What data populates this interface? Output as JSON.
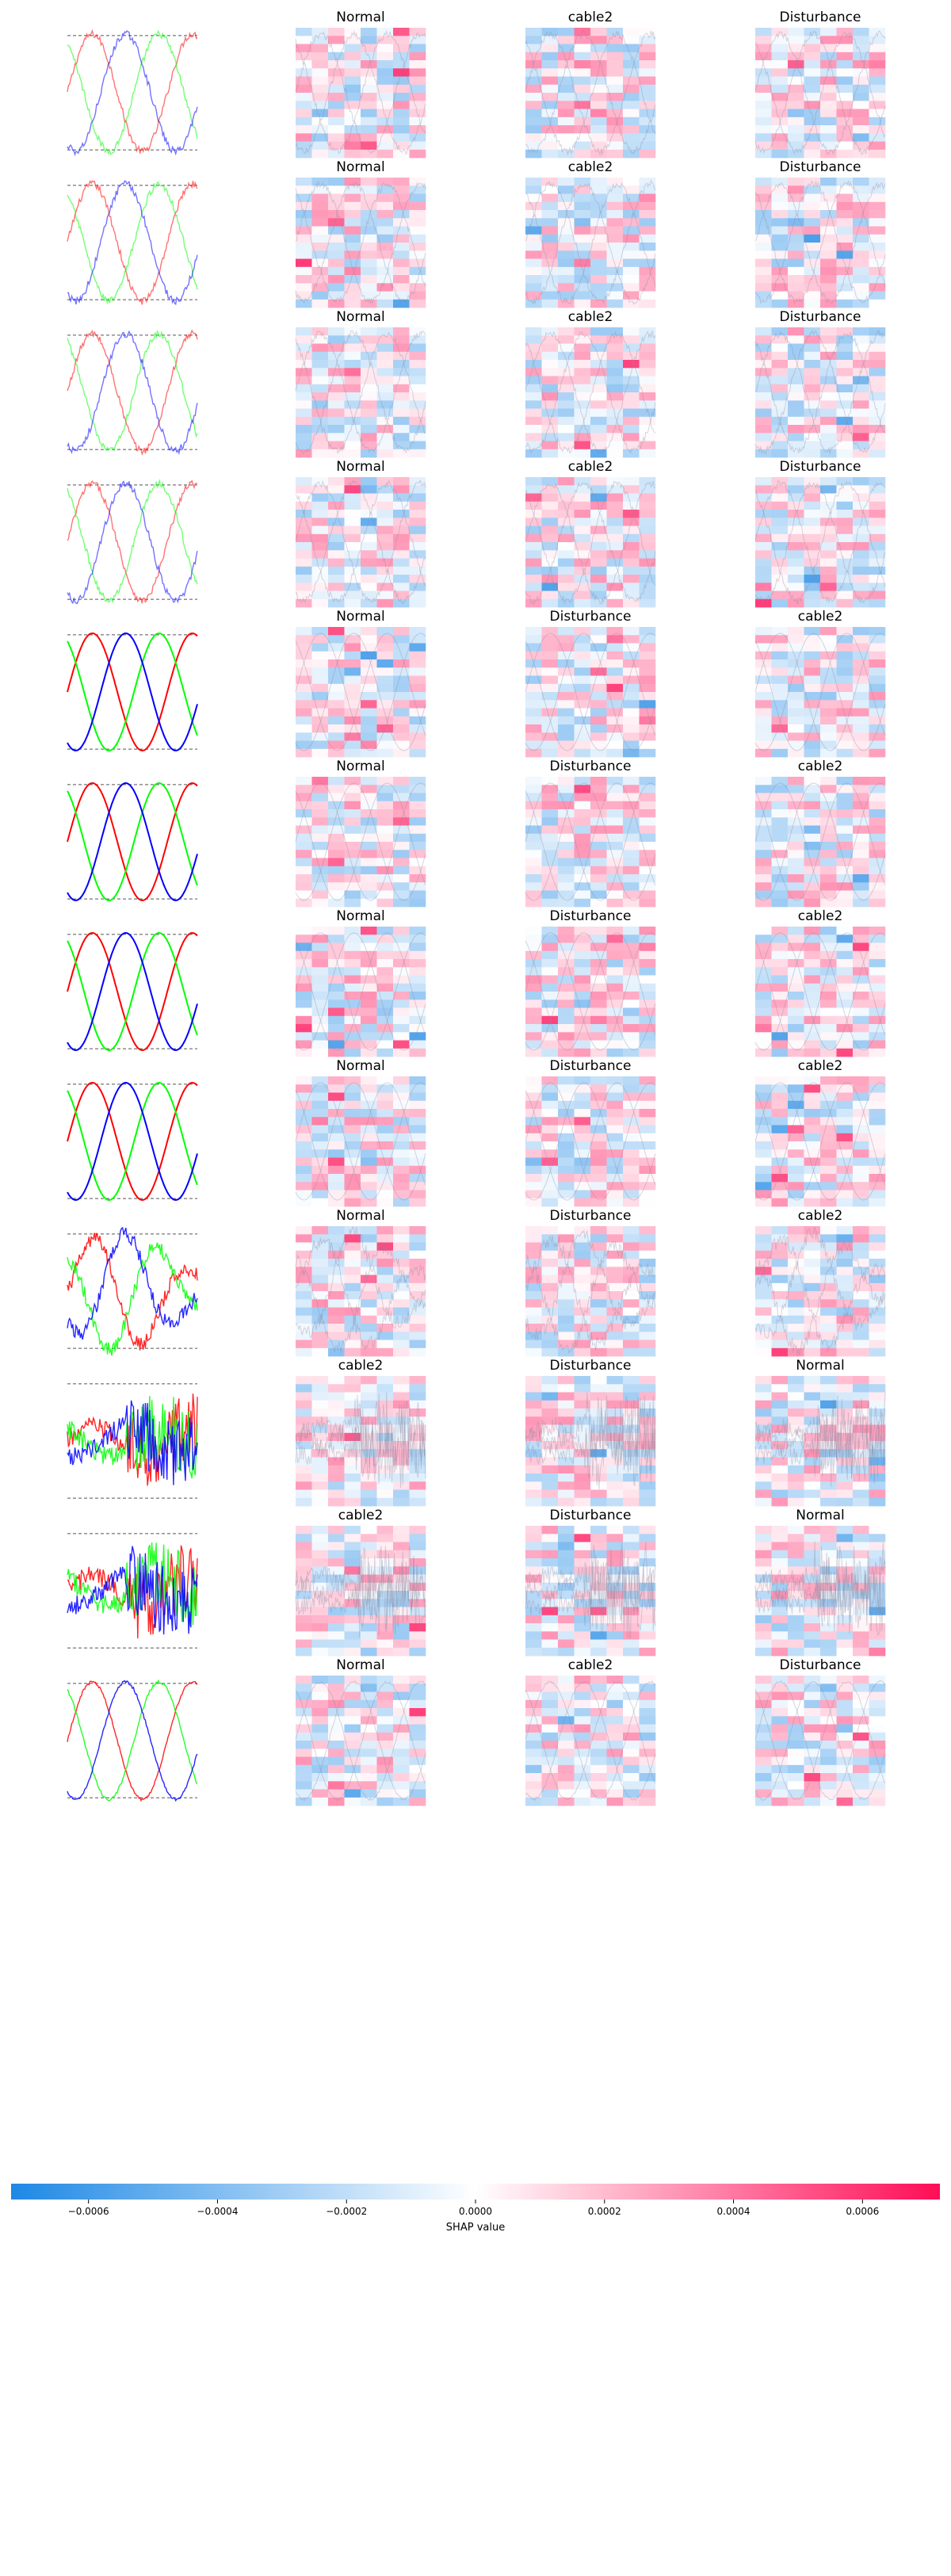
{
  "chart_data": {
    "type": "heatmap",
    "description_kind": "SHAP image explanation grid",
    "columns": 4,
    "rows": [
      {
        "titles": [
          "Normal",
          "cable2",
          "Disturbance"
        ],
        "signal": "noisy"
      },
      {
        "titles": [
          "Normal",
          "cable2",
          "Disturbance"
        ],
        "signal": "noisy"
      },
      {
        "titles": [
          "Normal",
          "cable2",
          "Disturbance"
        ],
        "signal": "noisy"
      },
      {
        "titles": [
          "Normal",
          "cable2",
          "Disturbance"
        ],
        "signal": "noisy"
      },
      {
        "titles": [
          "Normal",
          "Disturbance",
          "cable2"
        ],
        "signal": "clean"
      },
      {
        "titles": [
          "Normal",
          "Disturbance",
          "cable2"
        ],
        "signal": "clean"
      },
      {
        "titles": [
          "Normal",
          "Disturbance",
          "cable2"
        ],
        "signal": "clean"
      },
      {
        "titles": [
          "Normal",
          "Disturbance",
          "cable2"
        ],
        "signal": "clean"
      },
      {
        "titles": [
          "Normal",
          "Disturbance",
          "cable2"
        ],
        "signal": "distorted"
      },
      {
        "titles": [
          "cable2",
          "Disturbance",
          "Normal"
        ],
        "signal": "spiky"
      },
      {
        "titles": [
          "cable2",
          "Disturbance",
          "Normal"
        ],
        "signal": "spiky"
      },
      {
        "titles": [
          "Normal",
          "cable2",
          "Disturbance"
        ],
        "signal": "mixed"
      }
    ],
    "colorbar": {
      "label": "SHAP value",
      "min": -0.00072,
      "max": 0.00072,
      "ticks": [
        -0.0006,
        -0.0004,
        -0.0002,
        0.0,
        0.0002,
        0.0004,
        0.0006
      ],
      "tick_labels": [
        "−0.0006",
        "−0.0004",
        "−0.0002",
        "0.0000",
        "0.0002",
        "0.0004",
        "0.0006"
      ],
      "colors": {
        "negative": "#1e88e5",
        "neutral": "#ffffff",
        "positive": "#ff0d57"
      }
    },
    "trace_colors": {
      "phase_a": "#ff0000",
      "phase_b": "#00ff00",
      "phase_c": "#0000ff",
      "reference": "#555555"
    }
  }
}
